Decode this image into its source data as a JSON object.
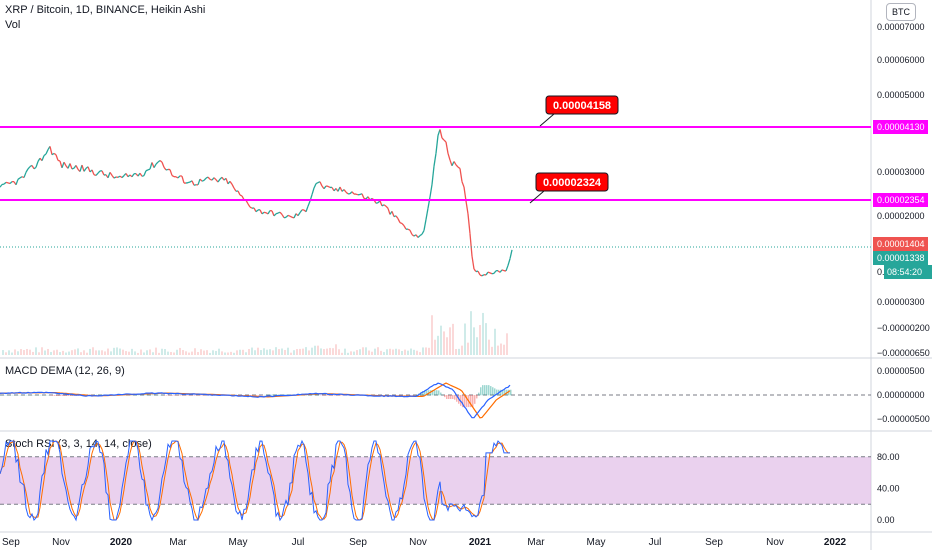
{
  "header": {
    "symbol_line": "XRP / Bitcoin, 1D, BINANCE, Heikin Ashi",
    "volume_label": "Vol",
    "currency_button": "BTC"
  },
  "price_axis": {
    "ticks": [
      "0.00007000",
      "0.00006000",
      "0.00005000",
      "0.00003000",
      "0.00002000",
      "0.00000300",
      "−0.00000200",
      "−0.00000650"
    ]
  },
  "price_tags": {
    "resistance": "0.00004130",
    "support": "0.00002354",
    "prev_close": "0.00001404",
    "last": "0.00001338",
    "countdown": "08:54:20",
    "partial": "0."
  },
  "callouts": {
    "upper": "0.00004158",
    "lower": "0.00002324"
  },
  "macd": {
    "label": "MACD DEMA (12, 26, 9)",
    "ticks": [
      "0.00000500",
      "0.00000000",
      "−0.00000500"
    ]
  },
  "stoch": {
    "label": "Stoch RSI (3, 3, 14, 14, close)",
    "ticks": [
      "80.00",
      "40.00",
      "0.00"
    ]
  },
  "time_axis": {
    "labels": [
      "Sep",
      "Nov",
      "2020",
      "Mar",
      "May",
      "Jul",
      "Sep",
      "Nov",
      "2021",
      "Mar",
      "May",
      "Jul",
      "Sep",
      "Nov",
      "2022"
    ]
  },
  "colors": {
    "up": "#26a69a",
    "down": "#ef5350",
    "magenta": "#ff00ff",
    "callout": "#ff0000",
    "macd_line": "#2962ff",
    "signal_line": "#ff6d00",
    "stoch_band": "#e1bee7"
  },
  "chart_data": [
    {
      "type": "line",
      "title": "XRP / Bitcoin, 1D, BINANCE, Heikin Ashi",
      "x_labels": [
        "Sep",
        "Nov",
        "2020",
        "Mar",
        "May",
        "Jul",
        "Sep",
        "Nov",
        "2021",
        "Mar",
        "May",
        "Jul",
        "Sep",
        "Nov",
        "2022"
      ],
      "series": [
        {
          "name": "",
          "points": [
            [
              "2019-09-01",
              2.65e-05
            ],
            [
              "2019-09-20",
              2.82e-05
            ],
            [
              "2019-10-10",
              3.28e-05
            ],
            [
              "2019-10-20",
              3.62e-05
            ],
            [
              "2019-11-01",
              3.18e-05
            ],
            [
              "2019-11-20",
              3.1e-05
            ],
            [
              "2019-12-10",
              2.98e-05
            ],
            [
              "2020-01-01",
              2.85e-05
            ],
            [
              "2020-01-25",
              3e-05
            ],
            [
              "2020-02-10",
              3.3e-05
            ],
            [
              "2020-02-25",
              2.9e-05
            ],
            [
              "2020-03-15",
              2.75e-05
            ],
            [
              "2020-04-01",
              2.82e-05
            ],
            [
              "2020-04-20",
              2.8e-05
            ],
            [
              "2020-05-05",
              2.4e-05
            ],
            [
              "2020-05-20",
              2.12e-05
            ],
            [
              "2020-06-10",
              2.05e-05
            ],
            [
              "2020-06-25",
              1.96e-05
            ],
            [
              "2020-07-10",
              2.15e-05
            ],
            [
              "2020-07-20",
              2.78e-05
            ],
            [
              "2020-08-01",
              2.6e-05
            ],
            [
              "2020-08-20",
              2.58e-05
            ],
            [
              "2020-09-05",
              2.45e-05
            ],
            [
              "2020-09-25",
              2.28e-05
            ],
            [
              "2020-10-15",
              1.85e-05
            ],
            [
              "2020-10-30",
              1.55e-05
            ],
            [
              "2020-11-08",
              1.65e-05
            ],
            [
              "2020-11-15",
              2.6e-05
            ],
            [
              "2020-11-24",
              4.13e-05
            ],
            [
              "2020-12-05",
              3.3e-05
            ],
            [
              "2020-12-15",
              3e-05
            ],
            [
              "2020-12-22",
              2.3e-05
            ],
            [
              "2020-12-28",
              1e-05
            ],
            [
              "2021-01-05",
              8.5e-06
            ],
            [
              "2021-01-20",
              9e-06
            ],
            [
              "2021-02-01",
              9.5e-06
            ],
            [
              "2021-02-08",
              1.4e-05
            ]
          ]
        }
      ],
      "horizontal_levels": [
        4.13e-05,
        2.354e-05
      ],
      "ylim": [
        -6.5e-06,
        7.5e-06
      ]
    },
    {
      "type": "line",
      "title": "MACD DEMA (12, 26, 9)",
      "series": [
        {
          "name": "",
          "points": [
            [
              "2019-09-01",
              4e-07
            ],
            [
              "2019-10-20",
              5e-07
            ],
            [
              "2019-12-01",
              -2e-07
            ],
            [
              "2020-02-10",
              4e-07
            ],
            [
              "2020-04-01",
              1e-07
            ],
            [
              "2020-05-25",
              -4e-07
            ],
            [
              "2020-07-20",
              3e-07
            ],
            [
              "2020-09-25",
              -2e-07
            ],
            [
              "2020-11-01",
              -3e-07
            ],
            [
              "2020-11-24",
              2.5e-06
            ],
            [
              "2020-12-10",
              1e-06
            ],
            [
              "2020-12-30",
              -5e-06
            ],
            [
              "2021-01-15",
              -1e-06
            ],
            [
              "2021-02-08",
              2.2e-06
            ]
          ]
        }
      ],
      "ylim": [
        -7.5e-06,
        7e-06
      ]
    },
    {
      "type": "line",
      "title": "Stoch RSI (3, 3, 14, 14, close)",
      "band": [
        20,
        80
      ],
      "ylim": [
        -5,
        105
      ]
    }
  ]
}
